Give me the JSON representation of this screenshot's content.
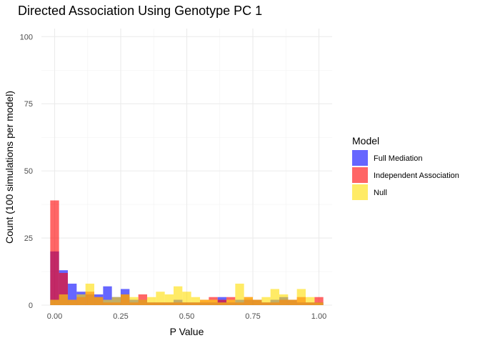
{
  "chart_data": {
    "type": "bar",
    "subtype": "overlapping-histogram",
    "title": "Directed Association Using Genotype PC 1",
    "xlabel": "P Value",
    "ylabel": "Count (100 simulations per model)",
    "xlim": [
      -0.05,
      1.05
    ],
    "ylim": [
      0,
      103
    ],
    "x_ticks": [
      {
        "value": 0.0,
        "label": "0.00"
      },
      {
        "value": 0.25,
        "label": "0.25"
      },
      {
        "value": 0.5,
        "label": "0.50"
      },
      {
        "value": 0.75,
        "label": "0.75"
      },
      {
        "value": 1.0,
        "label": "1.00"
      }
    ],
    "y_ticks": [
      {
        "value": 0,
        "label": "0"
      },
      {
        "value": 25,
        "label": "25"
      },
      {
        "value": 50,
        "label": "50"
      },
      {
        "value": 75,
        "label": "75"
      },
      {
        "value": 100,
        "label": "100"
      }
    ],
    "grid": true,
    "legend": {
      "title": "Model",
      "position": "right"
    },
    "bin_width": 0.0333,
    "bin_centers": [
      0.0,
      0.0333,
      0.0667,
      0.1,
      0.1333,
      0.1667,
      0.2,
      0.2333,
      0.2667,
      0.3,
      0.3333,
      0.3667,
      0.4,
      0.4333,
      0.4667,
      0.5,
      0.5333,
      0.5667,
      0.6,
      0.6333,
      0.6667,
      0.7,
      0.7333,
      0.7667,
      0.8,
      0.8333,
      0.8667,
      0.9,
      0.9333,
      0.9667,
      1.0
    ],
    "series": [
      {
        "name": "Full Mediation",
        "color": "#0000ff",
        "values": [
          20,
          13,
          8,
          5,
          4,
          4,
          7,
          3,
          6,
          2,
          2,
          1,
          1,
          1,
          2,
          1,
          1,
          1,
          1,
          3,
          1,
          2,
          2,
          2,
          1,
          2,
          3,
          2,
          1,
          1,
          1
        ]
      },
      {
        "name": "Independent Association",
        "color": "#ff0000",
        "values": [
          39,
          12,
          2,
          3,
          5,
          3,
          1,
          1,
          4,
          1,
          4,
          1,
          1,
          1,
          1,
          1,
          1,
          2,
          3,
          2,
          3,
          1,
          3,
          2,
          1,
          1,
          2,
          2,
          3,
          1,
          3
        ]
      },
      {
        "name": "Null",
        "color": "#ffdd00",
        "values": [
          2,
          4,
          2,
          4,
          8,
          3,
          2,
          3,
          4,
          3,
          2,
          3,
          5,
          4,
          7,
          5,
          3,
          2,
          2,
          1,
          2,
          8,
          3,
          2,
          3,
          6,
          4,
          2,
          6,
          3,
          1
        ]
      }
    ]
  }
}
